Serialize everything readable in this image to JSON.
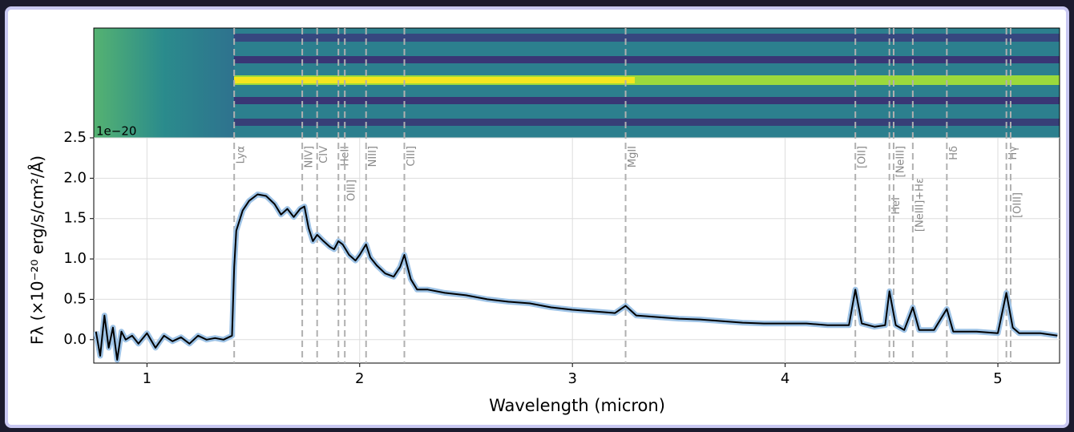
{
  "chart_data": {
    "type": "line",
    "offset_text": "1e−20",
    "ylabel": "Fλ (×10⁻²⁰ erg/s/cm²/Å)",
    "xlabel": "Wavelength (micron)",
    "x": [
      0.76,
      0.78,
      0.8,
      0.82,
      0.84,
      0.86,
      0.88,
      0.9,
      0.93,
      0.96,
      1.0,
      1.04,
      1.08,
      1.12,
      1.16,
      1.2,
      1.24,
      1.28,
      1.32,
      1.36,
      1.4,
      1.41,
      1.42,
      1.45,
      1.48,
      1.52,
      1.56,
      1.6,
      1.63,
      1.66,
      1.69,
      1.72,
      1.74,
      1.76,
      1.78,
      1.8,
      1.83,
      1.86,
      1.88,
      1.9,
      1.92,
      1.95,
      1.98,
      2.0,
      2.03,
      2.05,
      2.08,
      2.12,
      2.16,
      2.19,
      2.21,
      2.24,
      2.27,
      2.32,
      2.4,
      2.5,
      2.6,
      2.7,
      2.8,
      2.9,
      3.0,
      3.1,
      3.2,
      3.25,
      3.3,
      3.4,
      3.5,
      3.6,
      3.7,
      3.8,
      3.9,
      4.0,
      4.1,
      4.2,
      4.3,
      4.33,
      4.36,
      4.42,
      4.47,
      4.49,
      4.52,
      4.56,
      4.6,
      4.63,
      4.7,
      4.76,
      4.79,
      4.9,
      5.0,
      5.04,
      5.07,
      5.1,
      5.2,
      5.28
    ],
    "values": [
      0.1,
      -0.2,
      0.3,
      -0.1,
      0.15,
      -0.25,
      0.1,
      0.0,
      0.05,
      -0.05,
      0.08,
      -0.1,
      0.05,
      -0.02,
      0.03,
      -0.05,
      0.05,
      0.0,
      0.02,
      0.0,
      0.05,
      0.9,
      1.35,
      1.6,
      1.72,
      1.8,
      1.78,
      1.68,
      1.55,
      1.62,
      1.52,
      1.62,
      1.65,
      1.38,
      1.22,
      1.3,
      1.22,
      1.15,
      1.12,
      1.22,
      1.18,
      1.05,
      0.98,
      1.05,
      1.18,
      1.02,
      0.92,
      0.82,
      0.78,
      0.9,
      1.05,
      0.75,
      0.62,
      0.62,
      0.58,
      0.55,
      0.5,
      0.47,
      0.45,
      0.4,
      0.37,
      0.35,
      0.33,
      0.42,
      0.3,
      0.28,
      0.26,
      0.25,
      0.23,
      0.21,
      0.2,
      0.2,
      0.2,
      0.18,
      0.18,
      0.62,
      0.2,
      0.16,
      0.18,
      0.6,
      0.18,
      0.12,
      0.4,
      0.12,
      0.12,
      0.38,
      0.1,
      0.1,
      0.08,
      0.58,
      0.15,
      0.08,
      0.08,
      0.05
    ],
    "color": "#000000",
    "band_color": "#9ec3e6",
    "xlim": [
      0.75,
      5.29
    ],
    "ylim": [
      -0.29,
      2.5
    ],
    "xticks": [
      1,
      2,
      3,
      4,
      5
    ],
    "yticks": [
      {
        "value": 0,
        "label": "0.0"
      },
      0.5,
      {
        "value": 1,
        "label": "1.0"
      },
      1.5,
      {
        "value": 2,
        "label": "2.0"
      },
      2.5
    ],
    "grid": true,
    "annotations": [
      {
        "label": "Lyα",
        "x": 1.41
      },
      {
        "label": "NIV]",
        "x": 1.73
      },
      {
        "label": "CIV",
        "x": 1.8
      },
      {
        "label": "HeII",
        "x": 1.9
      },
      {
        "label": "OIII]",
        "x": 1.93
      },
      {
        "label": "NIII]",
        "x": 2.03
      },
      {
        "label": "CIII]",
        "x": 2.21
      },
      {
        "label": "MgII",
        "x": 3.25
      },
      {
        "label": "[OII]",
        "x": 4.33
      },
      {
        "label": "HeI",
        "x": 4.49
      },
      {
        "label": "[NeIII]",
        "x": 4.51
      },
      {
        "label": "[NeIII]+Hε",
        "x": 4.6
      },
      {
        "label": "Hδ",
        "x": 4.76
      },
      {
        "label": "Hγ",
        "x": 5.04
      },
      {
        "label": "[OIII]",
        "x": 5.06
      }
    ]
  }
}
